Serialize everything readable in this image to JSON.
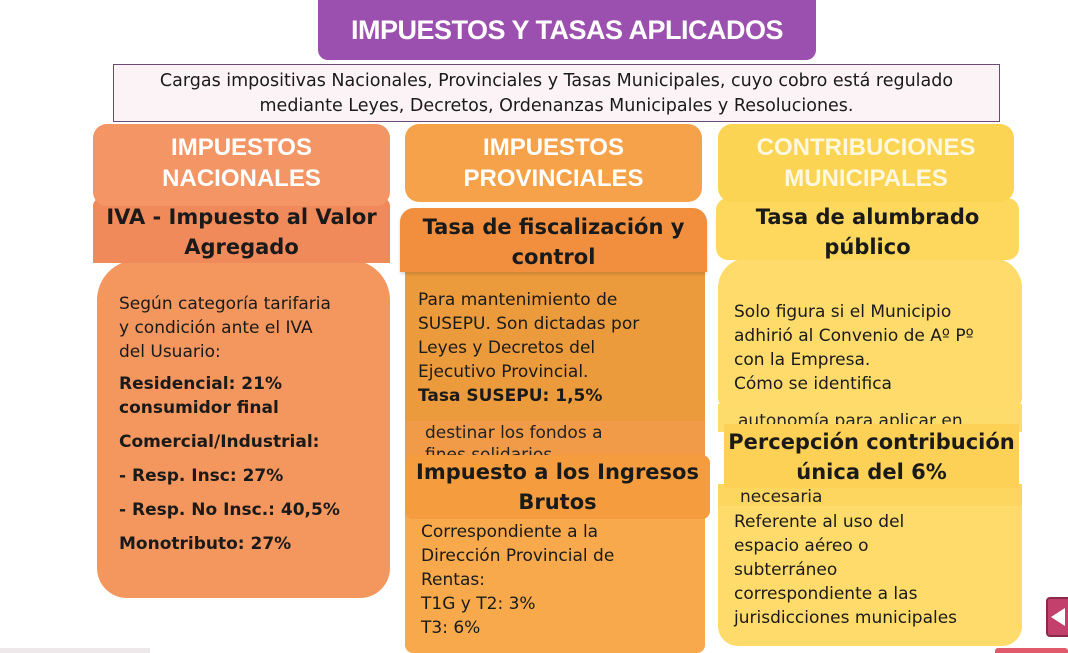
{
  "title": "IMPUESTOS Y TASAS APLICADOS",
  "intro": {
    "line1": "Cargas impositivas Nacionales, Provinciales y Tasas Municipales, cuyo cobro está regulado",
    "line2": "mediante Leyes, Decretos, Ordenanzas Municipales y Resoluciones."
  },
  "columns": {
    "nacionales": {
      "header": [
        "IMPUESTOS",
        "NACIONALES"
      ],
      "sub": [
        "IVA - Impuesto al Valor",
        "Agregado"
      ],
      "body": {
        "intro": [
          "Según categoría tarifaria",
          "y condición ante el IVA",
          "del Usuario:"
        ],
        "residencial_label": "Residencial: 21%",
        "residencial_sub": "consumidor final",
        "comercial_label": "Comercial/Industrial:",
        "resp_insc": "- Resp. Insc: 27%",
        "resp_no_insc": "- Resp. No Insc.: 40,5%",
        "monotributo": "Monotributo: 27%"
      }
    },
    "provinciales": {
      "header": [
        "IMPUESTOS",
        "PROVINCIALES"
      ],
      "sub1": [
        "Tasa de fiscalización y",
        "control"
      ],
      "body1": [
        "Para mantenimiento de",
        "SUSEPU. Son dictadas por",
        "Leyes y Decretos del",
        "Ejecutivo Provincial."
      ],
      "body1_bold": "Tasa SUSEPU: 1,5%",
      "ghost1": [
        "destinar los fondos a",
        "fines solidarios"
      ],
      "sub2": [
        "Impuesto a los Ingresos",
        "Brutos"
      ],
      "body2": [
        "Correspondiente a la",
        "Dirección Provincial de",
        "Rentas:",
        "T1G y T2: 3%",
        "T3: 6%"
      ]
    },
    "municipales": {
      "header": [
        "CONTRIBUCIONES",
        "MUNICIPALES"
      ],
      "sub1": [
        "Tasa de alumbrado",
        "público"
      ],
      "body1": [
        "Solo figura si el Municipio",
        "adhirió al Convenio de Aº Pº",
        "con la Empresa.",
        "Cómo se identifica"
      ],
      "ghost1": "autonomía para aplicar en",
      "sub2": [
        "Percepción contribución",
        "única del 6%"
      ],
      "ghost2": "necesaria",
      "body2": [
        "Referente al uso del",
        "espacio aéreo o",
        "subterráneo",
        "correspondiente a las",
        "jurisdicciones municipales"
      ]
    }
  },
  "colors": {
    "title_bg": "#9b4fae",
    "nacionales": "#f49565",
    "provinciales": "#f6a24a",
    "municipales": "#fcd453"
  },
  "nav": {
    "prev_icon": "triangle-left-icon"
  }
}
